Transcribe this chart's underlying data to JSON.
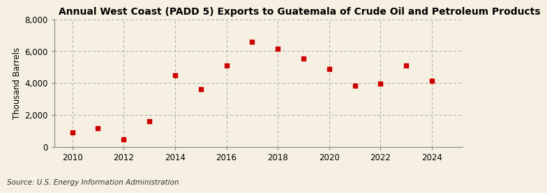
{
  "title": "Annual West Coast (PADD 5) Exports to Guatemala of Crude Oil and Petroleum Products",
  "ylabel": "Thousand Barrels",
  "source": "Source: U.S. Energy Information Administration",
  "years": [
    2010,
    2011,
    2012,
    2013,
    2014,
    2015,
    2016,
    2017,
    2018,
    2019,
    2020,
    2021,
    2022,
    2023,
    2024
  ],
  "values": [
    900,
    1150,
    480,
    1600,
    4500,
    3600,
    5100,
    6600,
    6150,
    5550,
    4900,
    3850,
    3950,
    5100,
    4150
  ],
  "marker_color": "#CC0000",
  "marker": "s",
  "marker_size": 4,
  "background_color": "#F5F0E1",
  "grid_color": "#AAAAAA",
  "ylim": [
    0,
    8000
  ],
  "yticks": [
    0,
    2000,
    4000,
    6000,
    8000
  ],
  "xlim": [
    2009.3,
    2025.2
  ],
  "xticks": [
    2010,
    2012,
    2014,
    2016,
    2018,
    2020,
    2022,
    2024
  ],
  "title_fontsize": 10,
  "ylabel_fontsize": 8.5,
  "tick_fontsize": 8.5,
  "source_fontsize": 7.5
}
